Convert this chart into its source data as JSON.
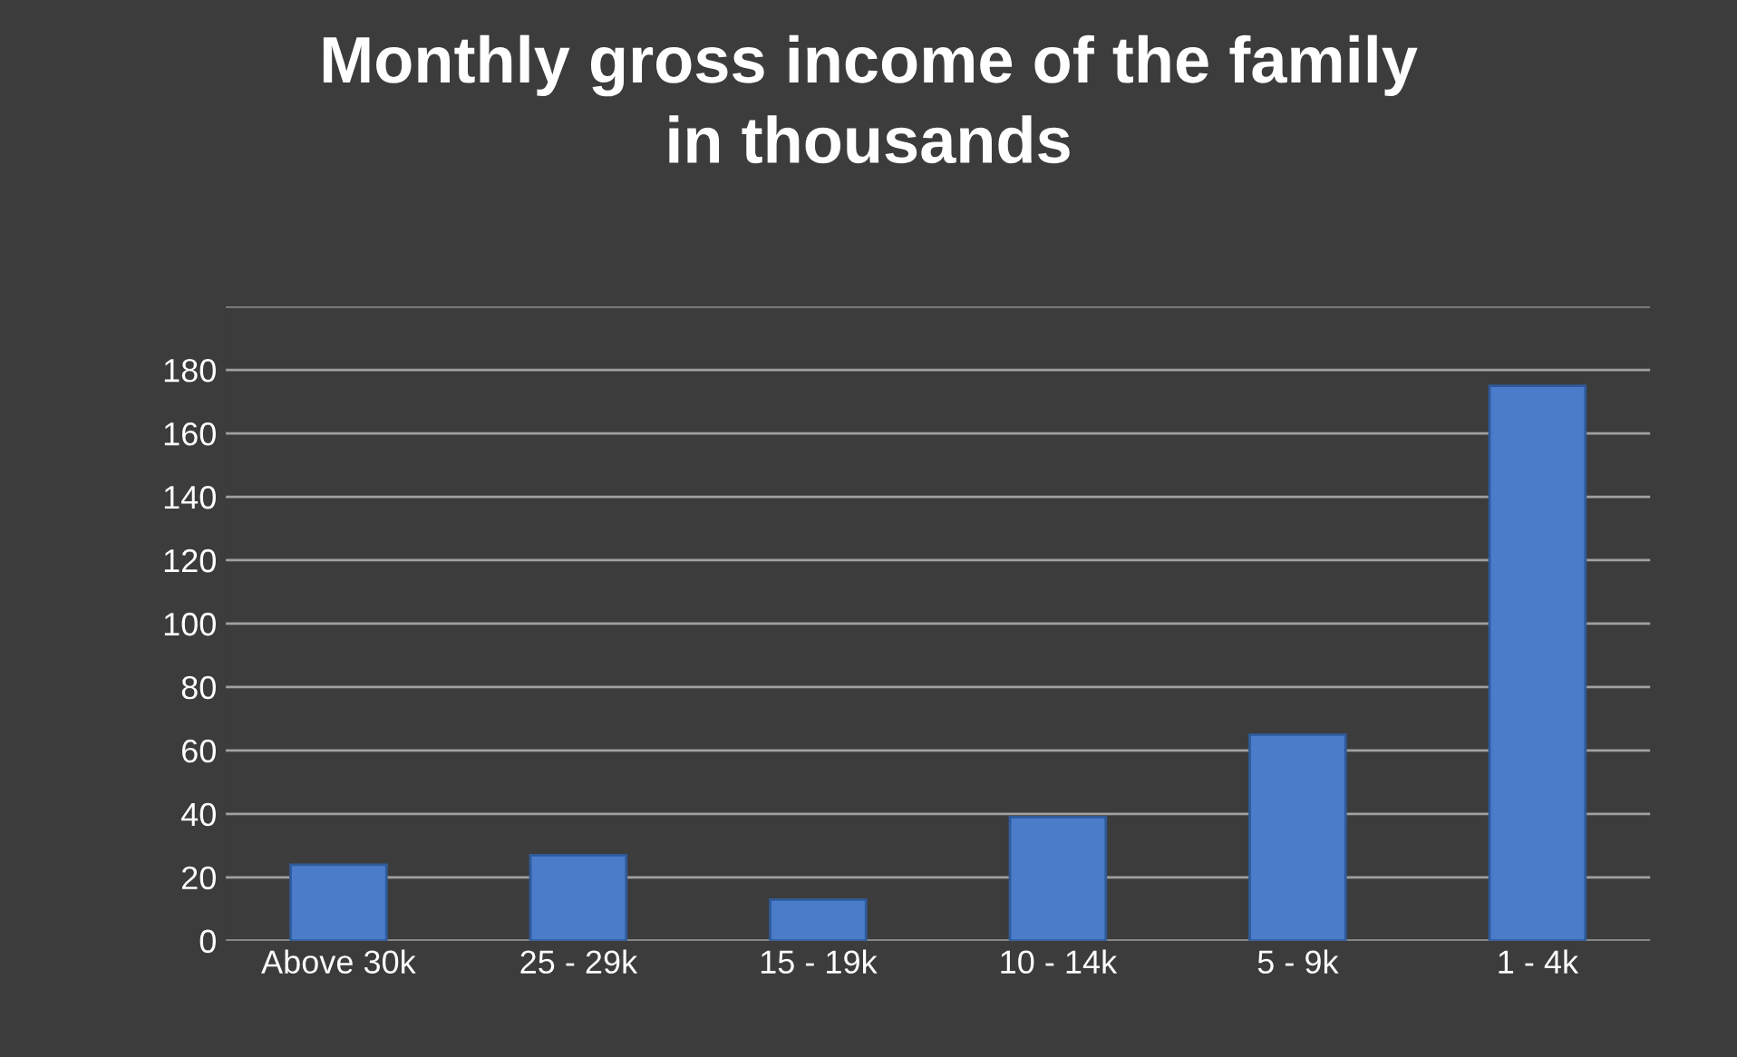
{
  "chart_data": {
    "type": "bar",
    "title": "Monthly gross income of the family\nin thousands",
    "categories": [
      "Above 30k",
      "25 - 29k",
      "15 - 19k",
      "10 - 14k",
      "5 - 9k",
      "1 - 4k"
    ],
    "values": [
      24,
      27,
      13,
      39,
      65,
      175
    ],
    "color": "#4a7cc9",
    "ylim": [
      0,
      200
    ],
    "yticks": [
      0,
      20,
      40,
      60,
      80,
      100,
      120,
      140,
      160,
      180,
      {
        "value": 200,
        "label": null
      }
    ],
    "grid": "y"
  }
}
